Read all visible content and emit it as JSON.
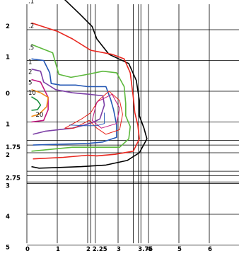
{
  "chart_data": {
    "type": "contour",
    "title": "",
    "xlabel": "",
    "ylabel": "",
    "grid": true,
    "x_ticks": [
      {
        "label": "0",
        "value": 0
      },
      {
        "label": "1",
        "value": 1
      },
      {
        "label": "2",
        "value": 2
      },
      {
        "label": "2.25",
        "value": 2.25
      },
      {
        "label": "3",
        "value": 3
      },
      {
        "label": "3.75",
        "value": 3.75
      },
      {
        "label": "4",
        "value": 4
      },
      {
        "label": "5",
        "value": 5
      },
      {
        "label": "6",
        "value": 6
      }
    ],
    "y_ticks": [
      {
        "label": "3",
        "value": -3
      },
      {
        "label": "2",
        "value": -2
      },
      {
        "label": "1",
        "value": -1
      },
      {
        "label": "0",
        "value": 0
      },
      {
        "label": "1",
        "value": 1
      },
      {
        "label": "1.75",
        "value": 1.75
      },
      {
        "label": "2",
        "value": 2
      },
      {
        "label": "2.75",
        "value": 2.75
      },
      {
        "label": "3",
        "value": 3
      },
      {
        "label": "4",
        "value": 4
      },
      {
        "label": "5",
        "value": 5
      }
    ],
    "xlim": [
      0,
      7
    ],
    "ylim": [
      -3,
      5
    ],
    "extra_vlines": [
      2.1,
      3.5,
      3.67
    ],
    "extra_hlines": [
      1.6,
      2.6,
      2.95
    ],
    "levels": [
      {
        "label": ".1",
        "color": "#000000",
        "points": [
          [
            0.15,
            -3.02
          ],
          [
            1.2,
            -3.02
          ],
          [
            1.75,
            -2.5
          ],
          [
            2.15,
            -2.1
          ],
          [
            2.3,
            -1.7
          ],
          [
            2.7,
            -1.2
          ],
          [
            3.35,
            -0.9
          ],
          [
            3.6,
            -0.35
          ],
          [
            3.7,
            0.3
          ],
          [
            3.7,
            0.8
          ],
          [
            3.85,
            1.2
          ],
          [
            3.95,
            1.55
          ],
          [
            3.7,
            2.0
          ],
          [
            3.3,
            2.25
          ],
          [
            2.6,
            2.4
          ],
          [
            1.8,
            2.45
          ],
          [
            1.0,
            2.48
          ],
          [
            0.4,
            2.5
          ],
          [
            0.15,
            2.45
          ]
        ]
      },
      {
        "label": ".2",
        "color": "#e8261e",
        "points": [
          [
            0.15,
            -2.22
          ],
          [
            1.0,
            -1.95
          ],
          [
            1.5,
            -1.7
          ],
          [
            2.1,
            -1.33
          ],
          [
            2.8,
            -1.2
          ],
          [
            3.2,
            -1.05
          ],
          [
            3.4,
            -0.6
          ],
          [
            3.5,
            0.2
          ],
          [
            3.55,
            0.7
          ],
          [
            3.65,
            1.1
          ],
          [
            3.7,
            1.55
          ],
          [
            3.5,
            1.95
          ],
          [
            2.9,
            2.05
          ],
          [
            2.3,
            2.1
          ],
          [
            2.0,
            2.08
          ],
          [
            1.2,
            2.15
          ],
          [
            0.2,
            2.2
          ]
        ]
      },
      {
        "label": ".5",
        "color": "#5cb83c",
        "points": [
          [
            0.15,
            -1.52
          ],
          [
            0.85,
            -1.25
          ],
          [
            1.05,
            -0.55
          ],
          [
            1.45,
            -0.45
          ],
          [
            2.0,
            -0.55
          ],
          [
            2.5,
            -0.65
          ],
          [
            2.95,
            -0.6
          ],
          [
            3.2,
            -0.15
          ],
          [
            3.25,
            0.4
          ],
          [
            3.25,
            0.8
          ],
          [
            3.4,
            1.15
          ],
          [
            3.35,
            1.55
          ],
          [
            3.05,
            1.82
          ],
          [
            2.2,
            1.82
          ],
          [
            1.5,
            1.82
          ],
          [
            0.15,
            1.95
          ]
        ]
      },
      {
        "label": "1",
        "color": "#2558b5",
        "points": [
          [
            0.15,
            -1.05
          ],
          [
            0.55,
            -1.0
          ],
          [
            0.75,
            -0.6
          ],
          [
            0.8,
            -0.25
          ],
          [
            1.1,
            -0.2
          ],
          [
            1.6,
            -0.2
          ],
          [
            2.0,
            -0.15
          ],
          [
            2.6,
            -0.15
          ],
          [
            2.75,
            0.25
          ],
          [
            2.85,
            0.6
          ],
          [
            2.95,
            1.1
          ],
          [
            2.95,
            1.5
          ],
          [
            2.5,
            1.65
          ],
          [
            2.0,
            1.7
          ],
          [
            1.2,
            1.72
          ],
          [
            0.2,
            1.75
          ]
        ]
      },
      {
        "label": "2",
        "color": "#7c3fa6",
        "points": [
          [
            0.15,
            -0.72
          ],
          [
            0.45,
            -0.65
          ],
          [
            0.55,
            -0.3
          ],
          [
            0.95,
            -0.05
          ],
          [
            1.5,
            0.05
          ],
          [
            2.05,
            0.1
          ],
          [
            2.5,
            0.15
          ],
          [
            2.55,
            0.45
          ],
          [
            2.4,
            0.9
          ],
          [
            2.2,
            1.0
          ],
          [
            1.9,
            1.1
          ],
          [
            1.5,
            1.2
          ],
          [
            0.6,
            1.3
          ],
          [
            0.2,
            1.4
          ]
        ]
      },
      {
        "label": "5",
        "color": "#c2177f",
        "points": [
          [
            0.15,
            -0.38
          ],
          [
            0.45,
            -0.3
          ],
          [
            0.7,
            0.2
          ],
          [
            0.7,
            0.6
          ],
          [
            0.55,
            0.95
          ],
          [
            0.15,
            1.0
          ]
        ]
      },
      {
        "label": "10",
        "color": "#f28c1a",
        "points": [
          [
            0.15,
            -0.05
          ],
          [
            0.45,
            0.05
          ],
          [
            0.7,
            0.2
          ],
          [
            0.65,
            0.5
          ],
          [
            0.4,
            0.75
          ],
          [
            0.15,
            0.82
          ]
        ]
      },
      {
        "label": "20",
        "color": "#1a8f3c",
        "points": [
          [
            0.15,
            0.18
          ],
          [
            0.35,
            0.3
          ],
          [
            0.45,
            0.45
          ],
          [
            0.35,
            0.6
          ],
          [
            0.15,
            0.62
          ]
        ]
      }
    ],
    "inner_loops": [
      {
        "color": "#e8261e",
        "points": [
          [
            2.35,
            0.3
          ],
          [
            2.7,
            0.0
          ],
          [
            3.05,
            0.3
          ],
          [
            3.15,
            0.75
          ],
          [
            3.05,
            1.25
          ],
          [
            2.6,
            1.4
          ],
          [
            2.3,
            1.2
          ],
          [
            2.05,
            0.95
          ],
          [
            1.55,
            1.2
          ],
          [
            1.25,
            1.2
          ],
          [
            1.8,
            0.9
          ],
          [
            2.1,
            0.7
          ],
          [
            2.35,
            0.3
          ]
        ]
      },
      {
        "color": "#c2177f",
        "points": [
          [
            2.3,
            0.35
          ],
          [
            2.8,
            0.1
          ],
          [
            3.05,
            0.55
          ],
          [
            2.95,
            1.05
          ],
          [
            2.45,
            1.2
          ],
          [
            2.15,
            0.95
          ],
          [
            2.3,
            0.35
          ]
        ]
      },
      {
        "color": "#2558b5",
        "points": [
          [
            2.55,
            0.7
          ],
          [
            2.55,
            1.05
          ],
          [
            2.3,
            1.12
          ],
          [
            1.9,
            1.12
          ],
          [
            1.4,
            1.1
          ]
        ]
      }
    ]
  }
}
